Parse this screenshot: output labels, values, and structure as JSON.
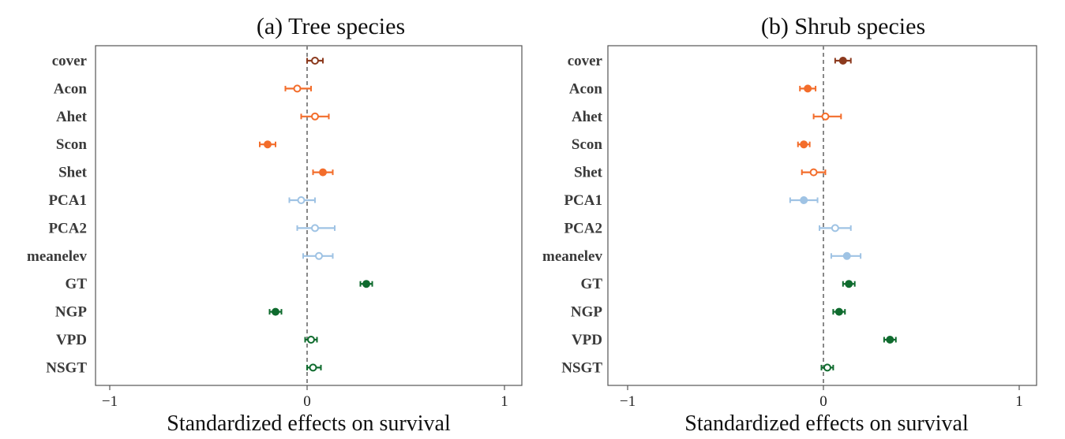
{
  "chart_data": [
    {
      "type": "scatter",
      "subtype": "coefficient-plot",
      "title": "(a) Tree species",
      "xlabel": "Standardized effects on survival",
      "ylabel": "",
      "xlim": [
        -1.1,
        1.1
      ],
      "xticks": [
        -1,
        0,
        1
      ],
      "xtick_labels": [
        "−1",
        "0",
        "1"
      ],
      "reference_line": 0,
      "grid": false,
      "variables": [
        {
          "name": "cover",
          "estimate": 0.04,
          "low": 0.0,
          "high": 0.08,
          "color": "#8c3a1e",
          "filled": false
        },
        {
          "name": "Acon",
          "estimate": -0.05,
          "low": -0.11,
          "high": 0.02,
          "color": "#f36d2b",
          "filled": false
        },
        {
          "name": "Ahet",
          "estimate": 0.04,
          "low": -0.03,
          "high": 0.11,
          "color": "#f36d2b",
          "filled": false
        },
        {
          "name": "Scon",
          "estimate": -0.2,
          "low": -0.24,
          "high": -0.16,
          "color": "#f36d2b",
          "filled": true
        },
        {
          "name": "Shet",
          "estimate": 0.08,
          "low": 0.03,
          "high": 0.13,
          "color": "#f36d2b",
          "filled": true
        },
        {
          "name": "PCA1",
          "estimate": -0.03,
          "low": -0.09,
          "high": 0.04,
          "color": "#9fc3e4",
          "filled": false
        },
        {
          "name": "PCA2",
          "estimate": 0.04,
          "low": -0.05,
          "high": 0.14,
          "color": "#9fc3e4",
          "filled": false
        },
        {
          "name": "meanelev",
          "estimate": 0.06,
          "low": -0.02,
          "high": 0.13,
          "color": "#9fc3e4",
          "filled": false
        },
        {
          "name": "GT",
          "estimate": 0.3,
          "low": 0.27,
          "high": 0.33,
          "color": "#0f6b2e",
          "filled": true
        },
        {
          "name": "NGP",
          "estimate": -0.16,
          "low": -0.19,
          "high": -0.13,
          "color": "#0f6b2e",
          "filled": true
        },
        {
          "name": "VPD",
          "estimate": 0.02,
          "low": -0.01,
          "high": 0.05,
          "color": "#0f6b2e",
          "filled": false
        },
        {
          "name": "NSGT",
          "estimate": 0.03,
          "low": 0.0,
          "high": 0.07,
          "color": "#0f6b2e",
          "filled": false
        }
      ]
    },
    {
      "type": "scatter",
      "subtype": "coefficient-plot",
      "title": "(b) Shrub species",
      "xlabel": "Standardized effects on survival",
      "ylabel": "",
      "xlim": [
        -1.1,
        1.1
      ],
      "xticks": [
        -1,
        0,
        1
      ],
      "xtick_labels": [
        "−1",
        "0",
        "1"
      ],
      "reference_line": 0,
      "grid": false,
      "variables": [
        {
          "name": "cover",
          "estimate": 0.1,
          "low": 0.06,
          "high": 0.14,
          "color": "#8c3a1e",
          "filled": true
        },
        {
          "name": "Acon",
          "estimate": -0.08,
          "low": -0.12,
          "high": -0.04,
          "color": "#f36d2b",
          "filled": true
        },
        {
          "name": "Ahet",
          "estimate": 0.01,
          "low": -0.05,
          "high": 0.09,
          "color": "#f36d2b",
          "filled": false
        },
        {
          "name": "Scon",
          "estimate": -0.1,
          "low": -0.13,
          "high": -0.07,
          "color": "#f36d2b",
          "filled": true
        },
        {
          "name": "Shet",
          "estimate": -0.05,
          "low": -0.11,
          "high": 0.01,
          "color": "#f36d2b",
          "filled": false
        },
        {
          "name": "PCA1",
          "estimate": -0.1,
          "low": -0.17,
          "high": -0.03,
          "color": "#9fc3e4",
          "filled": true
        },
        {
          "name": "PCA2",
          "estimate": 0.06,
          "low": -0.02,
          "high": 0.14,
          "color": "#9fc3e4",
          "filled": false
        },
        {
          "name": "meanelev",
          "estimate": 0.12,
          "low": 0.04,
          "high": 0.19,
          "color": "#9fc3e4",
          "filled": true
        },
        {
          "name": "GT",
          "estimate": 0.13,
          "low": 0.1,
          "high": 0.16,
          "color": "#0f6b2e",
          "filled": true
        },
        {
          "name": "NGP",
          "estimate": 0.08,
          "low": 0.05,
          "high": 0.11,
          "color": "#0f6b2e",
          "filled": true
        },
        {
          "name": "VPD",
          "estimate": 0.34,
          "low": 0.31,
          "high": 0.37,
          "color": "#0f6b2e",
          "filled": true
        },
        {
          "name": "NSGT",
          "estimate": 0.02,
          "low": -0.01,
          "high": 0.05,
          "color": "#0f6b2e",
          "filled": false
        }
      ]
    }
  ]
}
